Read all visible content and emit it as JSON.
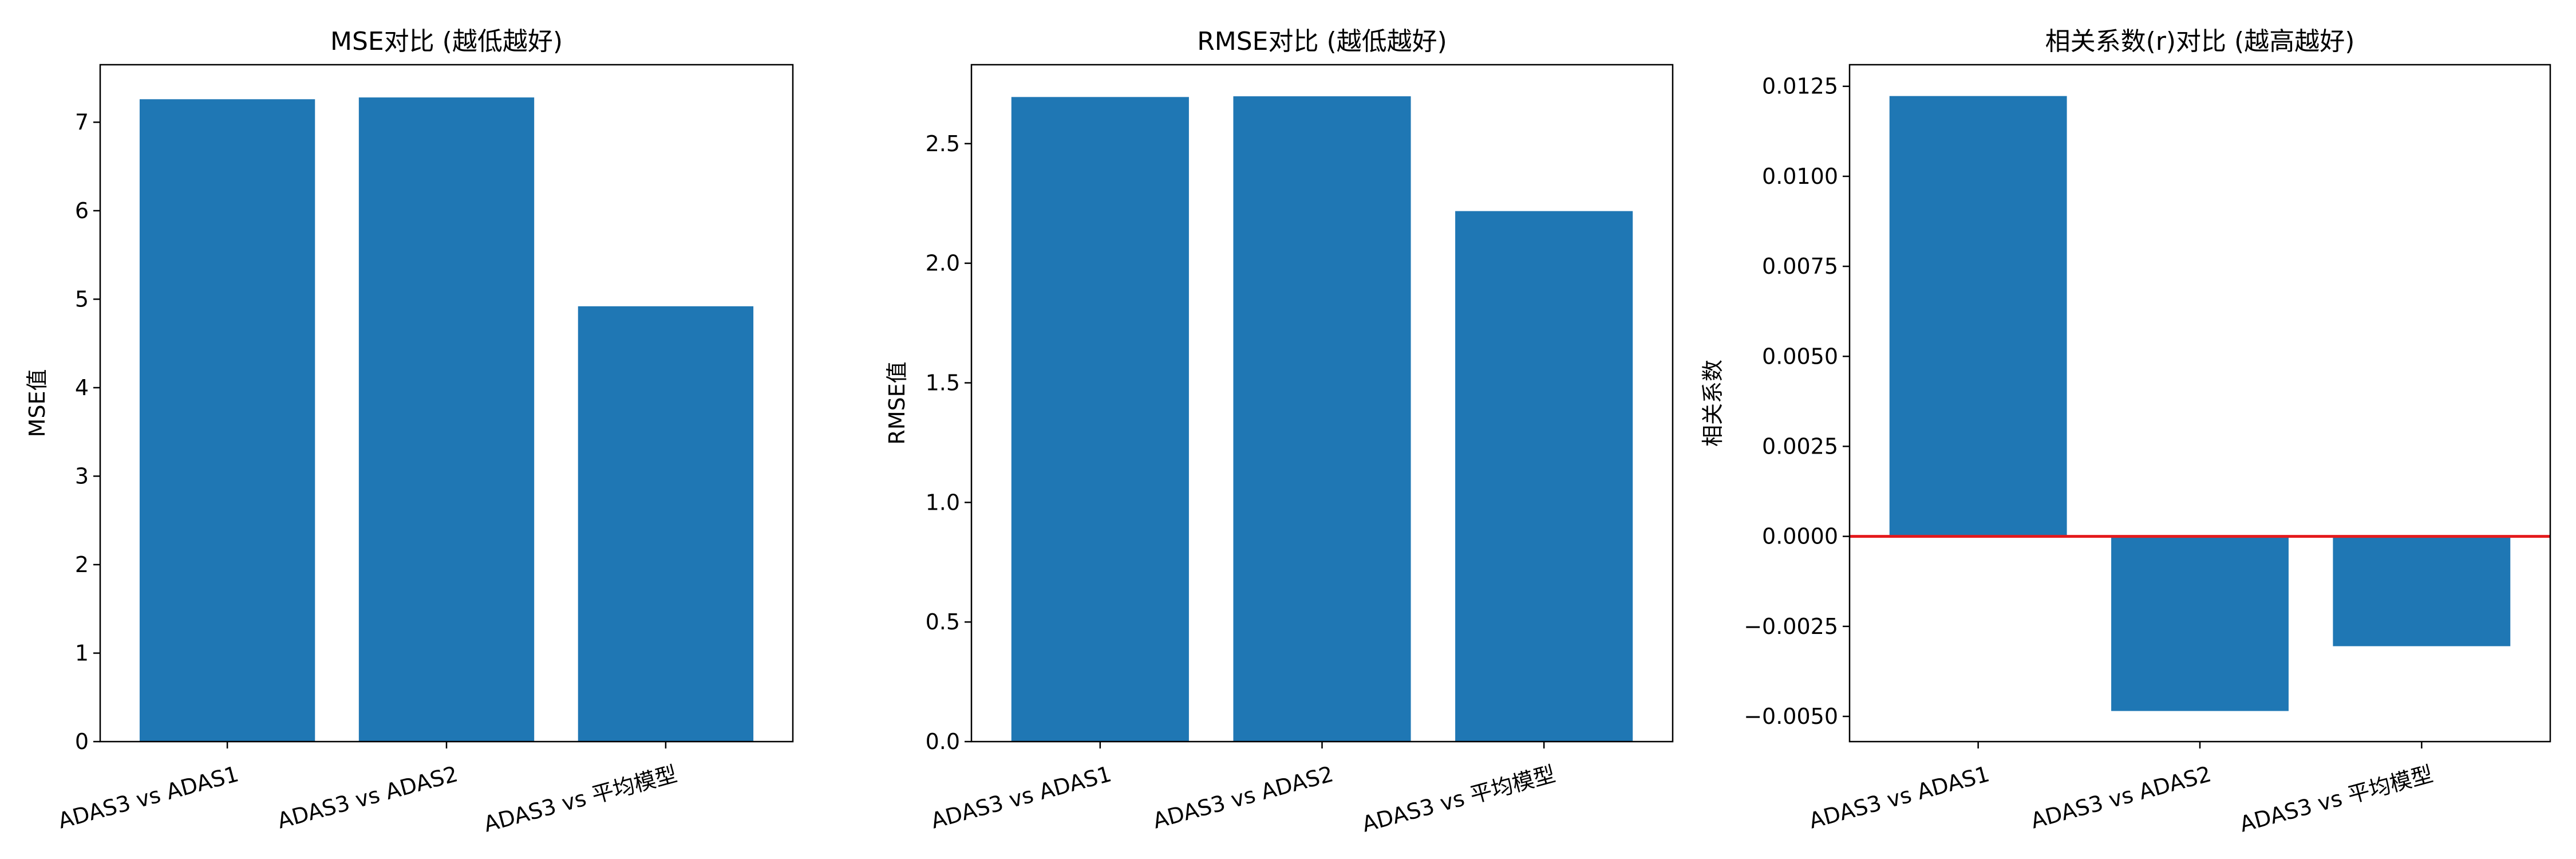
{
  "colors": {
    "bar": "#1f77b4",
    "zero_line": "#e41a1c",
    "axis": "#000000"
  },
  "chart_data": [
    {
      "type": "bar",
      "title": "MSE对比 (越低越好)",
      "xlabel": "",
      "ylabel": "MSE值",
      "categories": [
        "ADAS3 vs ADAS1",
        "ADAS3 vs ADAS2",
        "ADAS3 vs 平均模型"
      ],
      "values": [
        7.26,
        7.28,
        4.92
      ],
      "ylim": [
        0,
        7.65
      ],
      "yticks": [
        0,
        1,
        2,
        3,
        4,
        5,
        6,
        7
      ],
      "ytick_labels": [
        "0",
        "1",
        "2",
        "3",
        "4",
        "5",
        "6",
        "7"
      ],
      "zero_line": false
    },
    {
      "type": "bar",
      "title": "RMSE对比 (越低越好)",
      "xlabel": "",
      "ylabel": "RMSE值",
      "categories": [
        "ADAS3 vs ADAS1",
        "ADAS3 vs ADAS2",
        "ADAS3 vs 平均模型"
      ],
      "values": [
        2.695,
        2.698,
        2.218
      ],
      "ylim": [
        0,
        2.83
      ],
      "yticks": [
        0.0,
        0.5,
        1.0,
        1.5,
        2.0,
        2.5
      ],
      "ytick_labels": [
        "0.0",
        "0.5",
        "1.0",
        "1.5",
        "2.0",
        "2.5"
      ],
      "zero_line": false
    },
    {
      "type": "bar",
      "title": "相关系数(r)对比 (越高越好)",
      "xlabel": "",
      "ylabel": "相关系数",
      "categories": [
        "ADAS3 vs ADAS1",
        "ADAS3 vs ADAS2",
        "ADAS3 vs 平均模型"
      ],
      "values": [
        0.01223,
        -0.00485,
        -0.00305
      ],
      "ylim": [
        -0.0057,
        0.0131
      ],
      "yticks": [
        -0.005,
        -0.0025,
        0.0,
        0.0025,
        0.005,
        0.0075,
        0.01,
        0.0125
      ],
      "ytick_labels": [
        "−0.0050",
        "−0.0025",
        "0.0000",
        "0.0025",
        "0.0050",
        "0.0075",
        "0.0100",
        "0.0125"
      ],
      "zero_line": true
    }
  ]
}
